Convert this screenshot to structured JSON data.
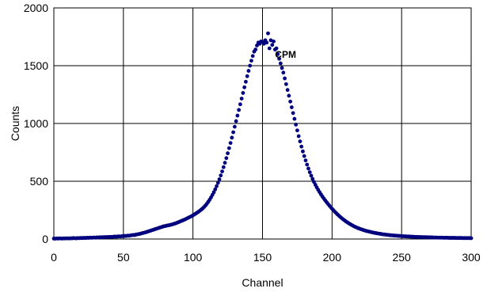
{
  "chart_data": {
    "type": "scatter",
    "title": "",
    "xlabel": "Channel",
    "ylabel": "Counts",
    "xlim": [
      0,
      300
    ],
    "ylim": [
      0,
      2000
    ],
    "x_ticks": [
      0,
      50,
      100,
      150,
      200,
      250,
      300
    ],
    "y_ticks": [
      0,
      500,
      1000,
      1500,
      2000
    ],
    "grid": true,
    "legend": "none",
    "marker_color": "#00007f",
    "annotations": [
      {
        "text": "CPM",
        "x": 159,
        "y": 1570
      }
    ],
    "series": [
      {
        "name": "",
        "points": [
          [
            0,
            4
          ],
          [
            1,
            3
          ],
          [
            2,
            5
          ],
          [
            3,
            4
          ],
          [
            4,
            6
          ],
          [
            5,
            5
          ],
          [
            6,
            4
          ],
          [
            7,
            6
          ],
          [
            8,
            5
          ],
          [
            9,
            6
          ],
          [
            10,
            6
          ],
          [
            11,
            5
          ],
          [
            12,
            7
          ],
          [
            13,
            6
          ],
          [
            14,
            8
          ],
          [
            15,
            7
          ],
          [
            16,
            6
          ],
          [
            17,
            8
          ],
          [
            18,
            7
          ],
          [
            19,
            9
          ],
          [
            20,
            8
          ],
          [
            21,
            9
          ],
          [
            22,
            10
          ],
          [
            23,
            9
          ],
          [
            24,
            11
          ],
          [
            25,
            10
          ],
          [
            26,
            12
          ],
          [
            27,
            11
          ],
          [
            28,
            12
          ],
          [
            29,
            13
          ],
          [
            30,
            12
          ],
          [
            31,
            14
          ],
          [
            32,
            13
          ],
          [
            33,
            15
          ],
          [
            34,
            14
          ],
          [
            35,
            16
          ],
          [
            36,
            15
          ],
          [
            37,
            17
          ],
          [
            38,
            16
          ],
          [
            39,
            18
          ],
          [
            40,
            17
          ],
          [
            41,
            19
          ],
          [
            42,
            18
          ],
          [
            43,
            20
          ],
          [
            44,
            21
          ],
          [
            45,
            20
          ],
          [
            46,
            22
          ],
          [
            47,
            23
          ],
          [
            48,
            22
          ],
          [
            49,
            25
          ],
          [
            50,
            24
          ],
          [
            51,
            27
          ],
          [
            52,
            26
          ],
          [
            53,
            29
          ],
          [
            54,
            28
          ],
          [
            55,
            31
          ],
          [
            56,
            33
          ],
          [
            57,
            35
          ],
          [
            58,
            34
          ],
          [
            59,
            38
          ],
          [
            60,
            40
          ],
          [
            61,
            43
          ],
          [
            62,
            45
          ],
          [
            63,
            49
          ],
          [
            64,
            52
          ],
          [
            65,
            55
          ],
          [
            66,
            58
          ],
          [
            67,
            62
          ],
          [
            68,
            66
          ],
          [
            69,
            70
          ],
          [
            70,
            74
          ],
          [
            71,
            78
          ],
          [
            72,
            82
          ],
          [
            73,
            86
          ],
          [
            74,
            90
          ],
          [
            75,
            94
          ],
          [
            76,
            98
          ],
          [
            77,
            102
          ],
          [
            78,
            106
          ],
          [
            79,
            110
          ],
          [
            80,
            112
          ],
          [
            81,
            115
          ],
          [
            82,
            118
          ],
          [
            83,
            120
          ],
          [
            84,
            123
          ],
          [
            85,
            126
          ],
          [
            86,
            130
          ],
          [
            87,
            134
          ],
          [
            88,
            138
          ],
          [
            89,
            143
          ],
          [
            90,
            148
          ],
          [
            91,
            153
          ],
          [
            92,
            158
          ],
          [
            93,
            163
          ],
          [
            94,
            168
          ],
          [
            95,
            174
          ],
          [
            96,
            180
          ],
          [
            97,
            186
          ],
          [
            98,
            192
          ],
          [
            99,
            198
          ],
          [
            100,
            205
          ],
          [
            101,
            212
          ],
          [
            102,
            220
          ],
          [
            103,
            228
          ],
          [
            104,
            236
          ],
          [
            105,
            245
          ],
          [
            106,
            255
          ],
          [
            107,
            265
          ],
          [
            108,
            277
          ],
          [
            109,
            290
          ],
          [
            110,
            305
          ],
          [
            111,
            322
          ],
          [
            112,
            340
          ],
          [
            113,
            360
          ],
          [
            114,
            382
          ],
          [
            115,
            405
          ],
          [
            116,
            430
          ],
          [
            117,
            457
          ],
          [
            118,
            486
          ],
          [
            119,
            517
          ],
          [
            120,
            550
          ],
          [
            121,
            585
          ],
          [
            122,
            622
          ],
          [
            123,
            660
          ],
          [
            124,
            700
          ],
          [
            125,
            742
          ],
          [
            126,
            786
          ],
          [
            127,
            831
          ],
          [
            128,
            877
          ],
          [
            129,
            924
          ],
          [
            130,
            972
          ],
          [
            131,
            1020
          ],
          [
            132,
            1068
          ],
          [
            133,
            1117
          ],
          [
            134,
            1166
          ],
          [
            135,
            1215
          ],
          [
            136,
            1264
          ],
          [
            137,
            1313
          ],
          [
            138,
            1361
          ],
          [
            139,
            1409
          ],
          [
            140,
            1455
          ],
          [
            141,
            1500
          ],
          [
            142,
            1543
          ],
          [
            143,
            1584
          ],
          [
            144,
            1622
          ],
          [
            145,
            1640
          ],
          [
            146,
            1675
          ],
          [
            147,
            1700
          ],
          [
            148,
            1690
          ],
          [
            149,
            1710
          ],
          [
            150,
            1705
          ],
          [
            151,
            1690
          ],
          [
            152,
            1720
          ],
          [
            153,
            1700
          ],
          [
            154,
            1780
          ],
          [
            155,
            1650
          ],
          [
            156,
            1720
          ],
          [
            157,
            1680
          ],
          [
            158,
            1710
          ],
          [
            159,
            1640
          ],
          [
            160,
            1650
          ],
          [
            161,
            1600
          ],
          [
            162,
            1560
          ],
          [
            163,
            1520
          ],
          [
            164,
            1480
          ],
          [
            165,
            1440
          ],
          [
            166,
            1390
          ],
          [
            167,
            1340
          ],
          [
            168,
            1290
          ],
          [
            169,
            1240
          ],
          [
            170,
            1190
          ],
          [
            171,
            1140
          ],
          [
            172,
            1090
          ],
          [
            173,
            1040
          ],
          [
            174,
            990
          ],
          [
            175,
            940
          ],
          [
            176,
            890
          ],
          [
            177,
            845
          ],
          [
            178,
            800
          ],
          [
            179,
            758
          ],
          [
            180,
            718
          ],
          [
            181,
            680
          ],
          [
            182,
            644
          ],
          [
            183,
            610
          ],
          [
            184,
            578
          ],
          [
            185,
            548
          ],
          [
            186,
            520
          ],
          [
            187,
            494
          ],
          [
            188,
            470
          ],
          [
            189,
            447
          ],
          [
            190,
            426
          ],
          [
            191,
            406
          ],
          [
            192,
            387
          ],
          [
            193,
            369
          ],
          [
            194,
            352
          ],
          [
            195,
            336
          ],
          [
            196,
            320
          ],
          [
            197,
            305
          ],
          [
            198,
            290
          ],
          [
            199,
            276
          ],
          [
            200,
            262
          ],
          [
            201,
            249
          ],
          [
            202,
            236
          ],
          [
            203,
            224
          ],
          [
            204,
            212
          ],
          [
            205,
            201
          ],
          [
            206,
            190
          ],
          [
            207,
            180
          ],
          [
            208,
            170
          ],
          [
            209,
            161
          ],
          [
            210,
            152
          ],
          [
            211,
            144
          ],
          [
            212,
            136
          ],
          [
            213,
            129
          ],
          [
            214,
            122
          ],
          [
            215,
            115
          ],
          [
            216,
            109
          ],
          [
            217,
            103
          ],
          [
            218,
            98
          ],
          [
            219,
            93
          ],
          [
            220,
            88
          ],
          [
            221,
            84
          ],
          [
            222,
            80
          ],
          [
            223,
            76
          ],
          [
            224,
            72
          ],
          [
            225,
            69
          ],
          [
            226,
            66
          ],
          [
            227,
            63
          ],
          [
            228,
            60
          ],
          [
            229,
            57
          ],
          [
            230,
            55
          ],
          [
            231,
            52
          ],
          [
            232,
            50
          ],
          [
            233,
            48
          ],
          [
            234,
            46
          ],
          [
            235,
            44
          ],
          [
            236,
            42
          ],
          [
            237,
            40
          ],
          [
            238,
            39
          ],
          [
            239,
            37
          ],
          [
            240,
            36
          ],
          [
            241,
            34
          ],
          [
            242,
            33
          ],
          [
            243,
            32
          ],
          [
            244,
            31
          ],
          [
            245,
            30
          ],
          [
            246,
            29
          ],
          [
            247,
            28
          ],
          [
            248,
            27
          ],
          [
            249,
            26
          ],
          [
            250,
            25
          ],
          [
            251,
            24
          ],
          [
            252,
            24
          ],
          [
            253,
            23
          ],
          [
            254,
            22
          ],
          [
            255,
            22
          ],
          [
            256,
            21
          ],
          [
            257,
            20
          ],
          [
            258,
            20
          ],
          [
            259,
            19
          ],
          [
            260,
            19
          ],
          [
            261,
            18
          ],
          [
            262,
            18
          ],
          [
            263,
            17
          ],
          [
            264,
            17
          ],
          [
            265,
            16
          ],
          [
            266,
            16
          ],
          [
            267,
            16
          ],
          [
            268,
            15
          ],
          [
            269,
            15
          ],
          [
            270,
            14
          ],
          [
            271,
            14
          ],
          [
            272,
            14
          ],
          [
            273,
            13
          ],
          [
            274,
            13
          ],
          [
            275,
            13
          ],
          [
            276,
            12
          ],
          [
            277,
            12
          ],
          [
            278,
            12
          ],
          [
            279,
            12
          ],
          [
            280,
            11
          ],
          [
            281,
            11
          ],
          [
            282,
            11
          ],
          [
            283,
            11
          ],
          [
            284,
            10
          ],
          [
            285,
            10
          ],
          [
            286,
            10
          ],
          [
            287,
            10
          ],
          [
            288,
            10
          ],
          [
            289,
            9
          ],
          [
            290,
            9
          ],
          [
            291,
            9
          ],
          [
            292,
            9
          ],
          [
            293,
            9
          ],
          [
            294,
            8
          ],
          [
            295,
            8
          ],
          [
            296,
            8
          ],
          [
            297,
            8
          ],
          [
            298,
            8
          ],
          [
            299,
            8
          ],
          [
            300,
            7
          ]
        ]
      }
    ]
  }
}
